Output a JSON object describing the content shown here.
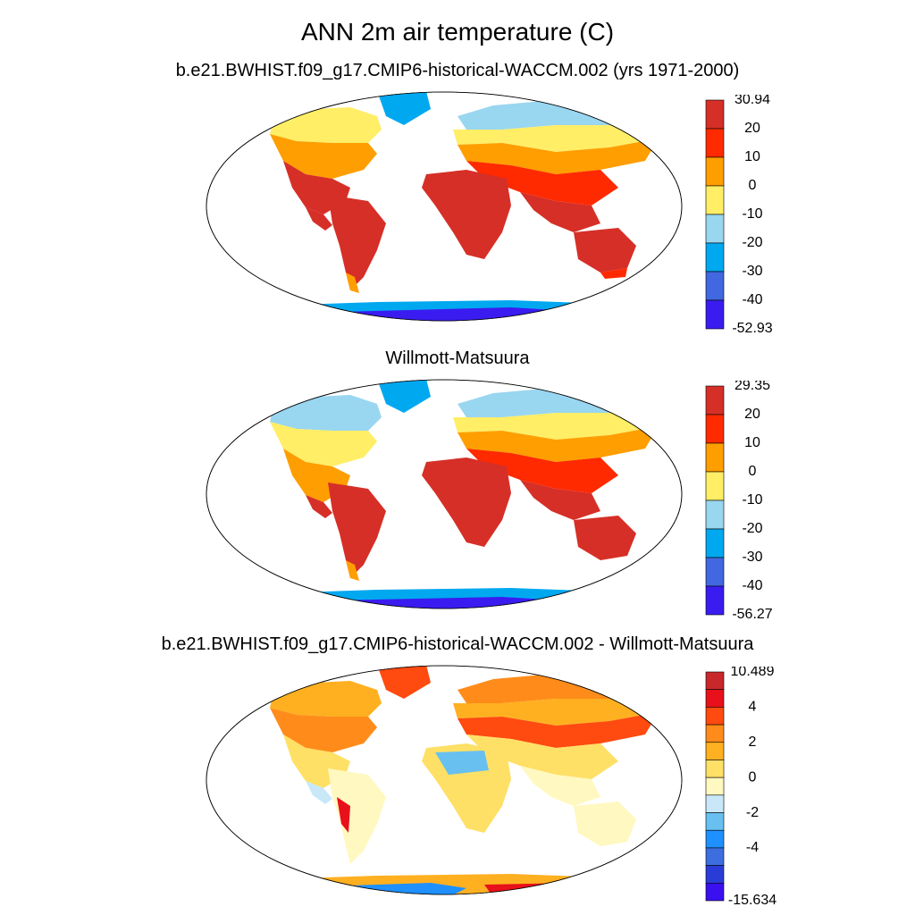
{
  "title": "ANN 2m air temperature (C)",
  "panels": [
    {
      "title": "b.e21.BWHIST.f09_g17.CMIP6-historical-WACCM.002 (yrs 1971-2000)",
      "colorbar": {
        "max_label": "30.94",
        "min_label": "-52.93",
        "ticks": [
          "20",
          "10",
          "0",
          "-10",
          "-20",
          "-30",
          "-40"
        ],
        "colors": [
          "#d62f27",
          "#ff2a00",
          "#ff9e00",
          "#ffee66",
          "#99d6f0",
          "#00a8f0",
          "#4168e0",
          "#3a1cf0"
        ]
      }
    },
    {
      "title": "Willmott-Matsuura",
      "colorbar": {
        "max_label": "29.35",
        "min_label": "-56.27",
        "ticks": [
          "20",
          "10",
          "0",
          "-10",
          "-20",
          "-30",
          "-40"
        ],
        "colors": [
          "#d62f27",
          "#ff2a00",
          "#ff9e00",
          "#ffee66",
          "#99d6f0",
          "#00a8f0",
          "#4168e0",
          "#3a1cf0"
        ]
      }
    },
    {
      "title": "b.e21.BWHIST.f09_g17.CMIP6-historical-WACCM.002 - Willmott-Matsuura",
      "colorbar": {
        "max_label": "10.489",
        "min_label": "-15.634",
        "ticks": [
          "",
          "4",
          "",
          "2",
          "",
          "0",
          "",
          "-2",
          "",
          "-4",
          ""
        ],
        "colors": [
          "#c8282a",
          "#e8101a",
          "#ff4a10",
          "#ff8c1a",
          "#ffb020",
          "#ffe066",
          "#fff8c0",
          "#c8e8f8",
          "#68c0f0",
          "#1e90ff",
          "#3c6ee0",
          "#2a3cd8",
          "#3a10f0"
        ]
      }
    }
  ],
  "legend_colors": {
    "hot": "#d62f27",
    "warm": "#ff9e00",
    "mild": "#ffee66",
    "cool": "#99d6f0",
    "cold": "#00a8f0",
    "frigid": "#3a1cf0"
  }
}
